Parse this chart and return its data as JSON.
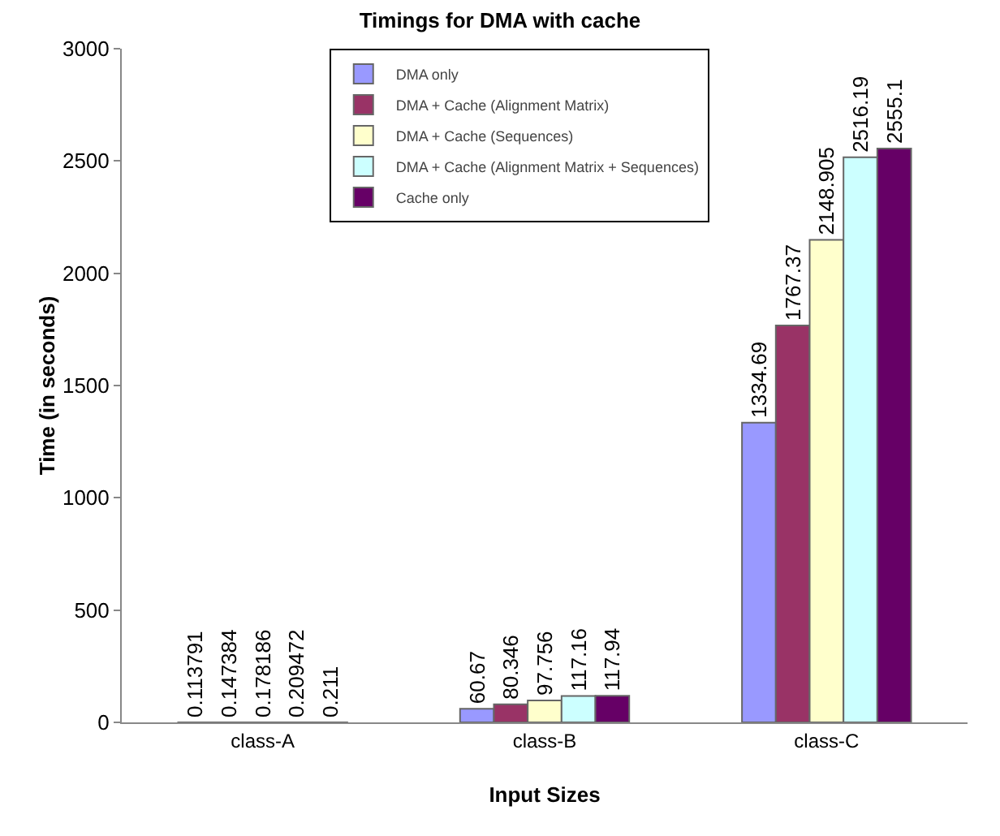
{
  "chart_data": {
    "type": "bar",
    "title": "Timings for DMA with cache",
    "xlabel": "Input Sizes",
    "ylabel": "Time (in seconds)",
    "categories": [
      "class-A",
      "class-B",
      "class-C"
    ],
    "series": [
      {
        "name": "DMA only",
        "color": "#9999ff",
        "values": [
          0.113791,
          60.67,
          1334.69
        ]
      },
      {
        "name": "DMA + Cache (Alignment Matrix)",
        "color": "#993366",
        "values": [
          0.147384,
          80.346,
          1767.37
        ]
      },
      {
        "name": "DMA + Cache (Sequences)",
        "color": "#ffffcc",
        "values": [
          0.178186,
          97.756,
          2148.905
        ]
      },
      {
        "name": "DMA + Cache (Alignment Matrix + Sequences)",
        "color": "#ccffff",
        "values": [
          0.209472,
          117.16,
          2516.19
        ]
      },
      {
        "name": "Cache only",
        "color": "#660066",
        "values": [
          0.211,
          117.94,
          2555.1
        ]
      }
    ],
    "ylim": [
      0,
      3000
    ],
    "yticks": [
      0,
      500,
      1000,
      1500,
      2000,
      2500,
      3000
    ],
    "grid": false,
    "legend": "top",
    "data_labels": true
  }
}
